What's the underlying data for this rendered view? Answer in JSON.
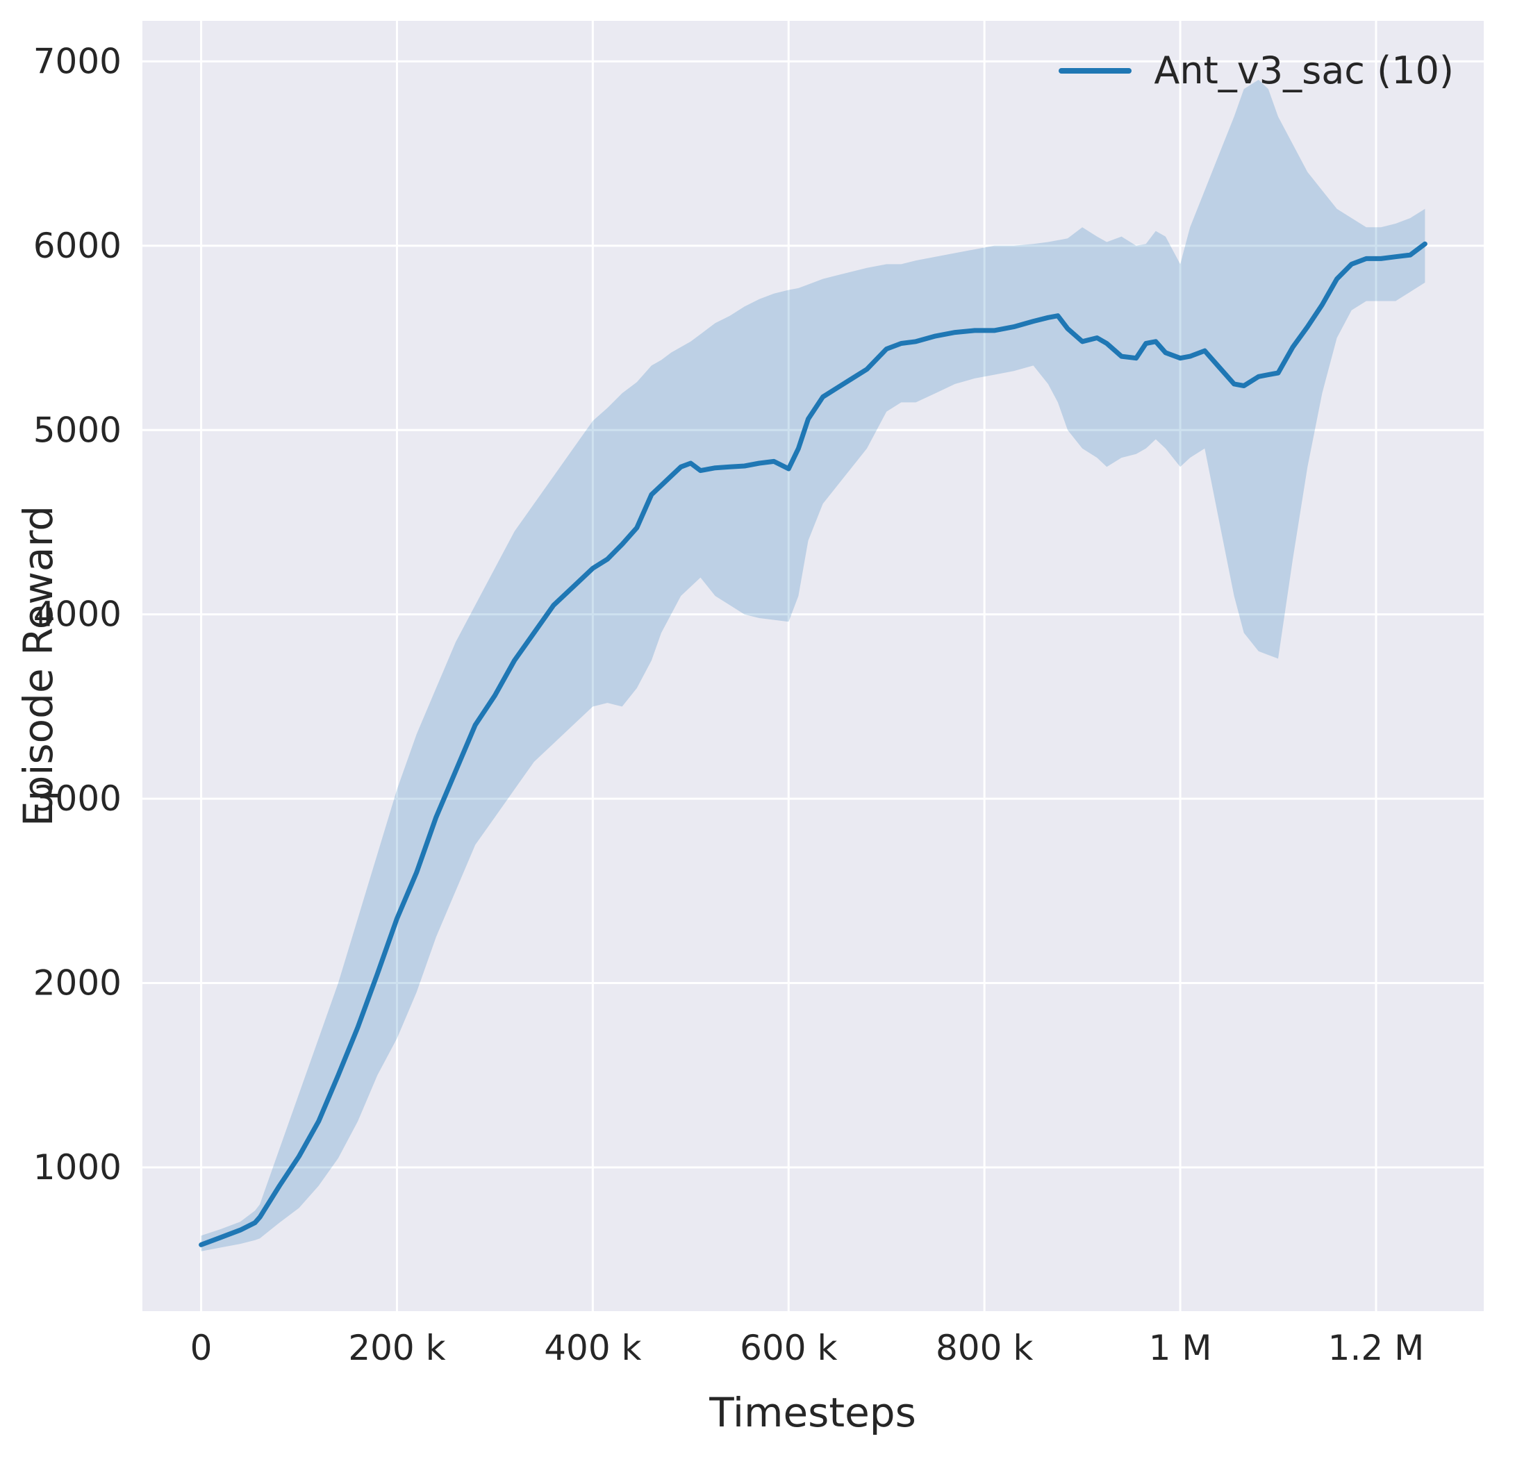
{
  "figure": {
    "background": "#ffffff"
  },
  "colors": {
    "plot_bg": "#eaeaf2",
    "grid": "#ffffff",
    "text": "#262626",
    "accent": "#1f77b4"
  },
  "chart_data": {
    "type": "line",
    "title": "",
    "xlabel": "Timesteps",
    "ylabel": "Episode Reward",
    "xlim": [
      -60000,
      1310000
    ],
    "ylim": [
      220,
      7220
    ],
    "grid": true,
    "legend_position": "upper right",
    "x_ticks": [
      {
        "value": 0,
        "label": "0"
      },
      {
        "value": 200000,
        "label": "200 k"
      },
      {
        "value": 400000,
        "label": "400 k"
      },
      {
        "value": 600000,
        "label": "600 k"
      },
      {
        "value": 800000,
        "label": "800 k"
      },
      {
        "value": 1000000,
        "label": "1 M"
      },
      {
        "value": 1200000,
        "label": "1.2 M"
      }
    ],
    "y_ticks": [
      {
        "value": 1000,
        "label": "1000"
      },
      {
        "value": 2000,
        "label": "2000"
      },
      {
        "value": 3000,
        "label": "3000"
      },
      {
        "value": 4000,
        "label": "4000"
      },
      {
        "value": 5000,
        "label": "5000"
      },
      {
        "value": 6000,
        "label": "6000"
      },
      {
        "value": 7000,
        "label": "7000"
      }
    ],
    "series": [
      {
        "name": "Ant_v3_sac (10)",
        "color": "#1f77b4",
        "band_opacity": 0.22,
        "x": [
          0,
          20000,
          40000,
          55000,
          60000,
          80000,
          100000,
          120000,
          140000,
          160000,
          180000,
          200000,
          220000,
          240000,
          260000,
          280000,
          300000,
          320000,
          340000,
          360000,
          380000,
          400000,
          415000,
          430000,
          445000,
          460000,
          470000,
          480000,
          490000,
          500000,
          510000,
          525000,
          540000,
          555000,
          570000,
          585000,
          600000,
          610000,
          620000,
          635000,
          650000,
          665000,
          680000,
          700000,
          715000,
          730000,
          750000,
          770000,
          790000,
          810000,
          830000,
          850000,
          865000,
          875000,
          885000,
          900000,
          915000,
          925000,
          940000,
          955000,
          965000,
          975000,
          985000,
          1000000,
          1010000,
          1025000,
          1040000,
          1055000,
          1065000,
          1080000,
          1090000,
          1100000,
          1115000,
          1130000,
          1145000,
          1160000,
          1175000,
          1190000,
          1205000,
          1220000,
          1235000,
          1250000
        ],
        "mean": [
          580,
          620,
          660,
          700,
          730,
          900,
          1060,
          1250,
          1500,
          1760,
          2050,
          2350,
          2600,
          2900,
          3150,
          3400,
          3560,
          3750,
          3900,
          4050,
          4150,
          4250,
          4300,
          4380,
          4470,
          4650,
          4700,
          4750,
          4800,
          4820,
          4780,
          4795,
          4800,
          4805,
          4820,
          4830,
          4790,
          4900,
          5060,
          5180,
          5230,
          5280,
          5330,
          5440,
          5470,
          5480,
          5510,
          5530,
          5540,
          5540,
          5560,
          5590,
          5610,
          5620,
          5550,
          5480,
          5500,
          5470,
          5400,
          5390,
          5470,
          5480,
          5420,
          5390,
          5400,
          5430,
          5340,
          5250,
          5240,
          5290,
          5300,
          5310,
          5450,
          5560,
          5680,
          5820,
          5900,
          5930,
          5930,
          5940,
          5950,
          6010
        ],
        "lower": [
          545,
          565,
          585,
          605,
          615,
          700,
          780,
          900,
          1050,
          1250,
          1500,
          1700,
          1950,
          2250,
          2500,
          2750,
          2900,
          3050,
          3200,
          3300,
          3400,
          3500,
          3520,
          3500,
          3600,
          3750,
          3900,
          4000,
          4100,
          4150,
          4200,
          4100,
          4050,
          4000,
          3980,
          3970,
          3960,
          4100,
          4400,
          4600,
          4700,
          4800,
          4900,
          5100,
          5150,
          5150,
          5200,
          5250,
          5280,
          5300,
          5320,
          5350,
          5250,
          5150,
          5000,
          4900,
          4850,
          4800,
          4850,
          4870,
          4900,
          4950,
          4900,
          4800,
          4850,
          4900,
          4500,
          4100,
          3900,
          3800,
          3780,
          3760,
          4300,
          4800,
          5200,
          5500,
          5650,
          5700,
          5700,
          5700,
          5750,
          5800
        ],
        "upper": [
          630,
          665,
          705,
          765,
          800,
          1100,
          1400,
          1700,
          2000,
          2350,
          2700,
          3050,
          3350,
          3600,
          3850,
          4050,
          4250,
          4450,
          4600,
          4750,
          4900,
          5050,
          5120,
          5200,
          5260,
          5350,
          5380,
          5420,
          5450,
          5480,
          5520,
          5580,
          5620,
          5670,
          5710,
          5740,
          5760,
          5770,
          5790,
          5820,
          5840,
          5860,
          5880,
          5900,
          5900,
          5920,
          5940,
          5960,
          5980,
          6000,
          6000,
          6010,
          6020,
          6030,
          6040,
          6100,
          6050,
          6020,
          6050,
          6000,
          6010,
          6080,
          6050,
          5900,
          6100,
          6300,
          6500,
          6700,
          6850,
          6900,
          6850,
          6700,
          6550,
          6400,
          6300,
          6200,
          6150,
          6100,
          6100,
          6120,
          6150,
          6200
        ]
      }
    ]
  }
}
